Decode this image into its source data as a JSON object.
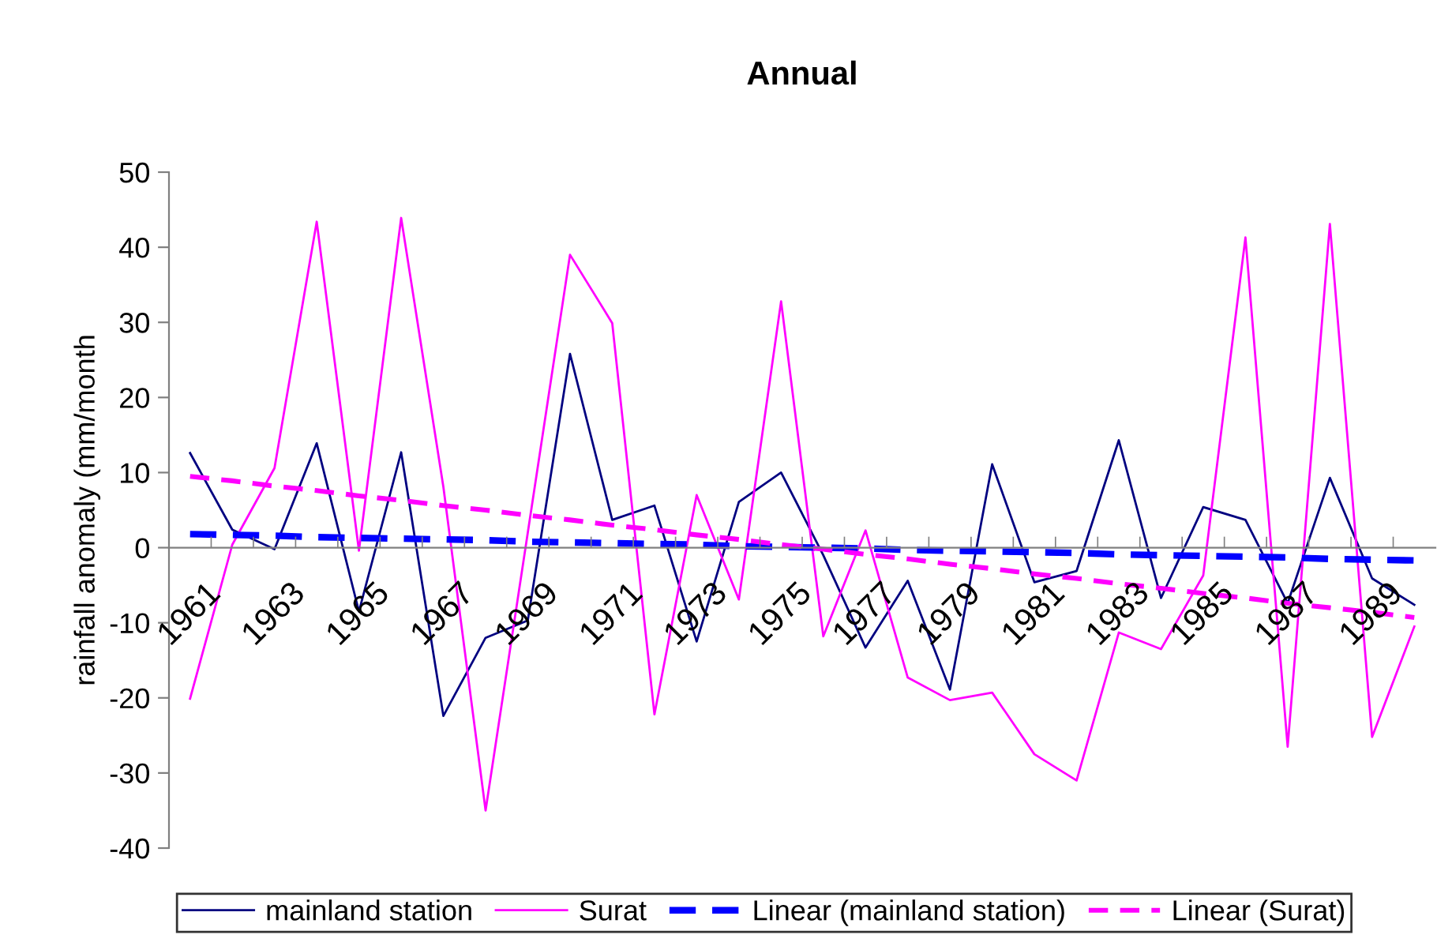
{
  "chart_data": {
    "type": "line",
    "title": "Annual",
    "ylabel": "rainfall anomaly (mm/month",
    "categories": [
      "1961",
      null,
      "1963",
      null,
      "1965",
      null,
      "1967",
      null,
      "1969",
      null,
      "1971",
      null,
      "1973",
      null,
      "1975",
      null,
      "1977",
      null,
      "1979",
      null,
      "1981",
      null,
      "1983",
      null,
      "1985",
      null,
      "1987",
      null,
      "1989",
      null
    ],
    "ylim": [
      -40,
      50
    ],
    "yticks": [
      -40,
      -30,
      -20,
      -10,
      0,
      10,
      20,
      30,
      40,
      50
    ],
    "grid": false,
    "legend": "bottom",
    "marker": "none",
    "series": [
      {
        "name": "mainland station",
        "color": "#000080",
        "line_style": "solid",
        "values": [
          12.6,
          2.4,
          -0.2,
          13.9,
          -8.5,
          12.7,
          -22.4,
          -12.0,
          -9.7,
          25.8,
          3.7,
          5.6,
          -12.5,
          6.1,
          10.0,
          -1.0,
          -13.3,
          -4.4,
          -18.9,
          11.1,
          -4.6,
          -3.1,
          14.3,
          -6.7,
          5.4,
          3.7,
          -7.4,
          9.3,
          -4.1,
          -7.6
        ]
      },
      {
        "name": "Surat",
        "color": "#ff00ff",
        "line_style": "solid",
        "values": [
          -20.1,
          0.4,
          10.6,
          43.4,
          -0.4,
          43.9,
          8.1,
          -35.0,
          2.0,
          39.0,
          29.9,
          -22.2,
          7.0,
          -6.9,
          32.8,
          -11.8,
          2.3,
          -17.3,
          -20.3,
          -19.3,
          -27.5,
          -31.0,
          -11.3,
          -13.5,
          -3.7,
          41.3,
          -26.5,
          43.1,
          -25.2,
          -10.5
        ]
      },
      {
        "name": "Linear (mainland station)",
        "color": "#0000ff",
        "line_style": "dashed",
        "values": [
          1.8,
          1.7,
          1.6,
          1.4,
          1.3,
          1.2,
          1.1,
          1.0,
          0.8,
          0.7,
          0.6,
          0.5,
          0.4,
          0.2,
          0.1,
          0.0,
          -0.1,
          -0.3,
          -0.4,
          -0.5,
          -0.6,
          -0.7,
          -0.9,
          -1.0,
          -1.1,
          -1.2,
          -1.3,
          -1.5,
          -1.6,
          -1.7
        ]
      },
      {
        "name": "Linear (Surat)",
        "color": "#ff00ff",
        "line_style": "dashed",
        "values": [
          9.5,
          8.9,
          8.2,
          7.6,
          6.9,
          6.3,
          5.6,
          5.0,
          4.3,
          3.7,
          3.0,
          2.4,
          1.7,
          1.1,
          0.4,
          -0.2,
          -0.9,
          -1.5,
          -2.2,
          -2.8,
          -3.5,
          -4.1,
          -4.8,
          -5.4,
          -6.1,
          -6.7,
          -7.4,
          -8.0,
          -8.6,
          -9.3
        ]
      }
    ]
  }
}
